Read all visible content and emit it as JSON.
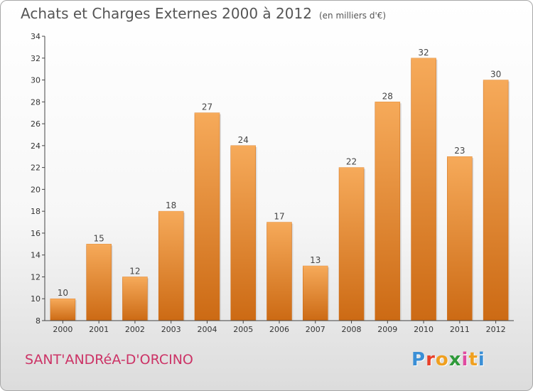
{
  "header": {
    "title": "Achats et Charges Externes 2000 à 2012",
    "subtitle": "(en milliers d'€)"
  },
  "footer": {
    "place": "SANT'ANDRéA-D'ORCINO",
    "logo_letters": [
      "P",
      "r",
      "o",
      "x",
      "i",
      "t",
      "i"
    ]
  },
  "colors": {
    "bar": "#f08f2e",
    "bar_light": "#f6aa5a",
    "bar_dark": "#cc6a14",
    "place_text": "#cc3366",
    "logo": [
      "#3a8fd6",
      "#e8402a",
      "#f0a020",
      "#2f9a3a",
      "#e04aa0",
      "#f0a020",
      "#3a8fd6"
    ]
  },
  "chart_data": {
    "type": "bar",
    "categories": [
      "2000",
      "2001",
      "2002",
      "2003",
      "2004",
      "2005",
      "2006",
      "2007",
      "2008",
      "2009",
      "2010",
      "2011",
      "2012"
    ],
    "values": [
      10,
      15,
      12,
      18,
      27,
      24,
      17,
      13,
      22,
      28,
      32,
      23,
      30
    ],
    "title": "Achats et Charges Externes 2000 à 2012",
    "ylim": [
      8,
      34
    ],
    "yticks": [
      8,
      10,
      12,
      14,
      16,
      18,
      20,
      22,
      24,
      26,
      28,
      30,
      32,
      34
    ],
    "grid": false,
    "data_labels": true
  }
}
